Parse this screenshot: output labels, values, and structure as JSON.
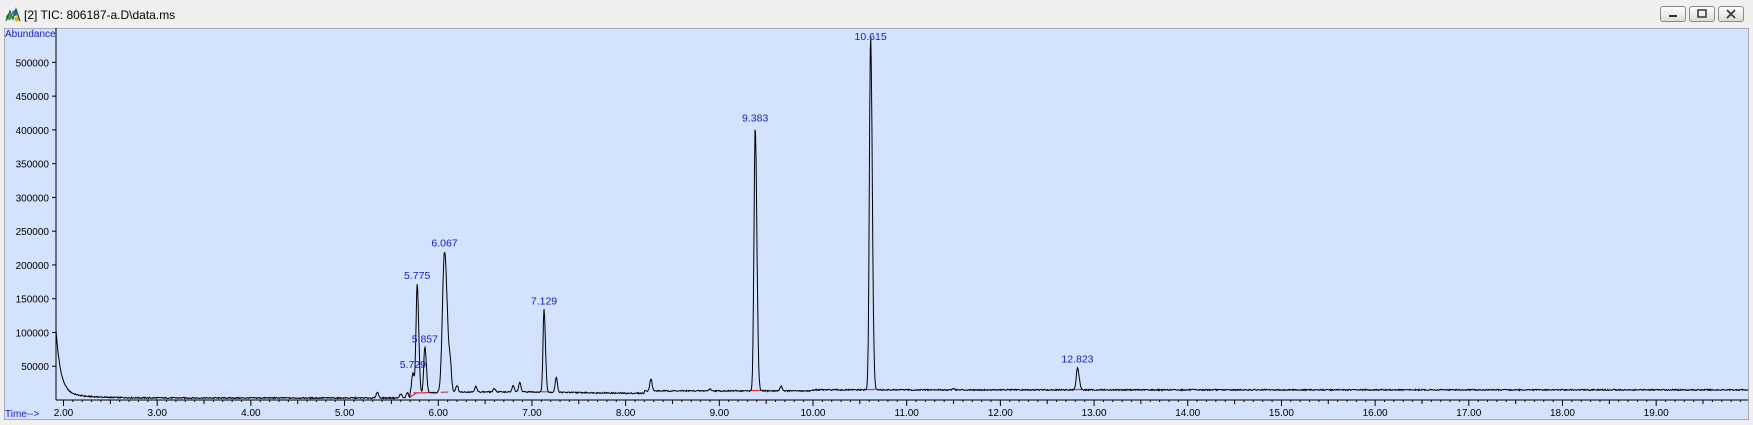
{
  "window": {
    "title": "[2] TIC: 806187-a.D\\data.ms",
    "icon": "chromatogram-app-icon",
    "buttons": [
      "minimize",
      "restore",
      "close"
    ]
  },
  "chart_data": {
    "type": "line",
    "xlabel": "Time-->",
    "ylabel": "Abundance",
    "xlim": [
      1.92,
      19.98
    ],
    "ylim": [
      0,
      545000
    ],
    "x_ticks": [
      "2.00",
      "3.00",
      "4.00",
      "5.00",
      "6.00",
      "7.00",
      "8.00",
      "9.00",
      "10.00",
      "11.00",
      "12.00",
      "13.00",
      "14.00",
      "15.00",
      "16.00",
      "17.00",
      "18.00",
      "19.00"
    ],
    "y_ticks": [
      "50000",
      "100000",
      "150000",
      "200000",
      "250000",
      "300000",
      "350000",
      "400000",
      "450000",
      "500000"
    ],
    "grid": false,
    "colors": {
      "background": "#d3e2fd",
      "trace": "#000000",
      "peak_label": "#1a1ac8",
      "baseline_marker": "#e03030"
    },
    "peaks": [
      {
        "rt": 5.729,
        "label": "5.729",
        "height": 40000
      },
      {
        "rt": 5.775,
        "label": "5.775",
        "height": 172000
      },
      {
        "rt": 5.857,
        "label": "5.857",
        "height": 78000
      },
      {
        "rt": 6.067,
        "label": "6.067",
        "height": 220000
      },
      {
        "rt": 7.129,
        "label": "7.129",
        "height": 134000
      },
      {
        "rt": 9.383,
        "label": "9.383",
        "height": 405000
      },
      {
        "rt": 10.615,
        "label": "10.615",
        "height": 540000
      },
      {
        "rt": 12.823,
        "label": "12.823",
        "height": 48000
      }
    ],
    "minor_peaks": [
      {
        "rt": 5.35,
        "height": 9000
      },
      {
        "rt": 5.6,
        "height": 6000
      },
      {
        "rt": 5.67,
        "height": 8000
      },
      {
        "rt": 6.13,
        "height": 30000
      },
      {
        "rt": 6.2,
        "height": 10000
      },
      {
        "rt": 6.4,
        "height": 8000
      },
      {
        "rt": 6.6,
        "height": 5000
      },
      {
        "rt": 6.8,
        "height": 9000
      },
      {
        "rt": 6.87,
        "height": 14000
      },
      {
        "rt": 7.26,
        "height": 22000
      },
      {
        "rt": 8.27,
        "height": 18000
      },
      {
        "rt": 8.9,
        "height": 3000
      },
      {
        "rt": 9.66,
        "height": 7000
      },
      {
        "rt": 11.5,
        "height": 2000
      }
    ]
  }
}
